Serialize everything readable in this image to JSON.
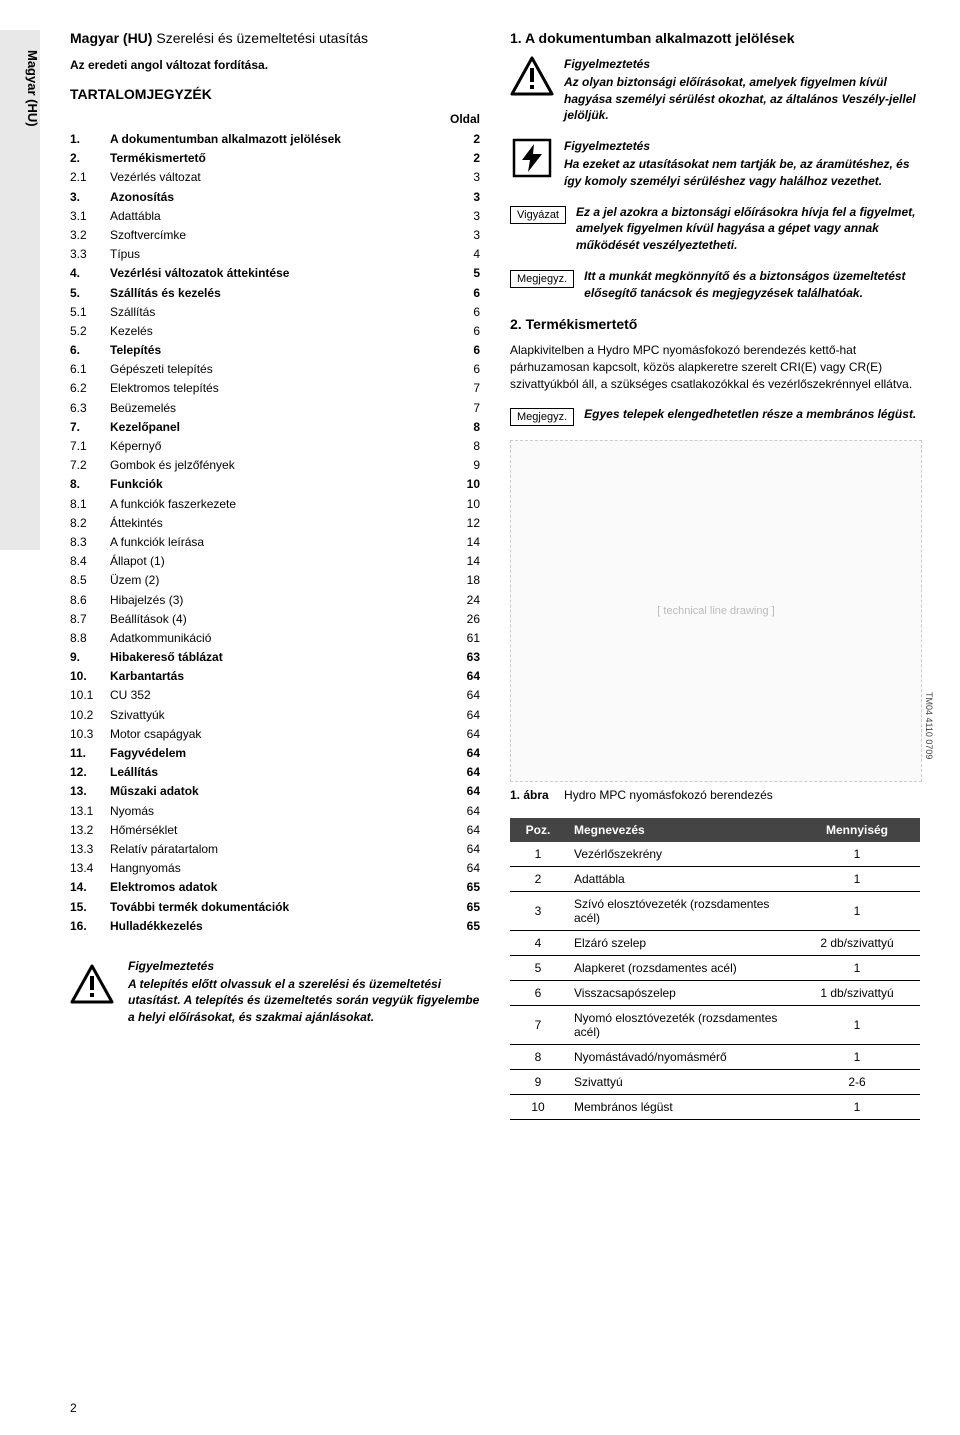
{
  "side_tab": "Magyar (HU)",
  "doc_title_lang": "Magyar (HU)",
  "doc_title_rest": "Szerelési és üzemeltetési utasítás",
  "subtitle": "Az eredeti angol változat fordítása.",
  "toc_heading": "TARTALOMJEGYZÉK",
  "toc_page_label": "Oldal",
  "toc": [
    {
      "n": "1.",
      "t": "A dokumentumban alkalmazott jelölések",
      "p": "2",
      "b": true
    },
    {
      "n": "2.",
      "t": "Termékismertető",
      "p": "2",
      "b": true
    },
    {
      "n": "2.1",
      "t": "Vezérlés változat",
      "p": "3",
      "b": false
    },
    {
      "n": "3.",
      "t": "Azonosítás",
      "p": "3",
      "b": true
    },
    {
      "n": "3.1",
      "t": "Adattábla",
      "p": "3",
      "b": false
    },
    {
      "n": "3.2",
      "t": "Szoftvercímke",
      "p": "3",
      "b": false
    },
    {
      "n": "3.3",
      "t": "Típus",
      "p": "4",
      "b": false
    },
    {
      "n": "4.",
      "t": "Vezérlési változatok áttekintése",
      "p": "5",
      "b": true
    },
    {
      "n": "5.",
      "t": "Szállítás és kezelés",
      "p": "6",
      "b": true
    },
    {
      "n": "5.1",
      "t": "Szállítás",
      "p": "6",
      "b": false
    },
    {
      "n": "5.2",
      "t": "Kezelés",
      "p": "6",
      "b": false
    },
    {
      "n": "6.",
      "t": "Telepítés",
      "p": "6",
      "b": true
    },
    {
      "n": "6.1",
      "t": "Gépészeti telepítés",
      "p": "6",
      "b": false
    },
    {
      "n": "6.2",
      "t": "Elektromos telepítés",
      "p": "7",
      "b": false
    },
    {
      "n": "6.3",
      "t": "Beüzemelés",
      "p": "7",
      "b": false
    },
    {
      "n": "7.",
      "t": "Kezelőpanel",
      "p": "8",
      "b": true
    },
    {
      "n": "7.1",
      "t": "Képernyő",
      "p": "8",
      "b": false
    },
    {
      "n": "7.2",
      "t": "Gombok és jelzőfények",
      "p": "9",
      "b": false
    },
    {
      "n": "8.",
      "t": "Funkciók",
      "p": "10",
      "b": true
    },
    {
      "n": "8.1",
      "t": "A funkciók faszerkezete",
      "p": "10",
      "b": false
    },
    {
      "n": "8.2",
      "t": "Áttekintés",
      "p": "12",
      "b": false
    },
    {
      "n": "8.3",
      "t": "A funkciók leírása",
      "p": "14",
      "b": false
    },
    {
      "n": "8.4",
      "t": "Állapot (1)",
      "p": "14",
      "b": false
    },
    {
      "n": "8.5",
      "t": "Üzem (2)",
      "p": "18",
      "b": false
    },
    {
      "n": "8.6",
      "t": "Hibajelzés (3)",
      "p": "24",
      "b": false
    },
    {
      "n": "8.7",
      "t": "Beállítások (4)",
      "p": "26",
      "b": false
    },
    {
      "n": "8.8",
      "t": "Adatkommunikáció",
      "p": "61",
      "b": false
    },
    {
      "n": "9.",
      "t": "Hibakereső táblázat",
      "p": "63",
      "b": true
    },
    {
      "n": "10.",
      "t": "Karbantartás",
      "p": "64",
      "b": true
    },
    {
      "n": "10.1",
      "t": "CU 352",
      "p": "64",
      "b": false
    },
    {
      "n": "10.2",
      "t": "Szivattyúk",
      "p": "64",
      "b": false
    },
    {
      "n": "10.3",
      "t": "Motor csapágyak",
      "p": "64",
      "b": false
    },
    {
      "n": "11.",
      "t": "Fagyvédelem",
      "p": "64",
      "b": true
    },
    {
      "n": "12.",
      "t": "Leállítás",
      "p": "64",
      "b": true
    },
    {
      "n": "13.",
      "t": "Műszaki adatok",
      "p": "64",
      "b": true
    },
    {
      "n": "13.1",
      "t": "Nyomás",
      "p": "64",
      "b": false
    },
    {
      "n": "13.2",
      "t": "Hőmérséklet",
      "p": "64",
      "b": false
    },
    {
      "n": "13.3",
      "t": "Relatív páratartalom",
      "p": "64",
      "b": false
    },
    {
      "n": "13.4",
      "t": "Hangnyomás",
      "p": "64",
      "b": false
    },
    {
      "n": "14.",
      "t": "Elektromos adatok",
      "p": "65",
      "b": true
    },
    {
      "n": "15.",
      "t": "További termék dokumentációk",
      "p": "65",
      "b": true
    },
    {
      "n": "16.",
      "t": "Hulladékkezelés",
      "p": "65",
      "b": true
    }
  ],
  "left_warning": {
    "lead": "Figyelmeztetés",
    "body": "A telepítés előtt olvassuk el a szerelési és üzemeltetési utasítást. A telepítés és üzemeltetés során vegyük figyelembe a helyi előírásokat, és szakmai ajánlásokat."
  },
  "section1_heading": "1. A dokumentumban alkalmazott jelölések",
  "notices": {
    "warn1": {
      "lead": "Figyelmeztetés",
      "body": "Az olyan biztonsági előírásokat, amelyek figyelmen kívül hagyása személyi sérülést okozhat, az általános Veszély-jellel jelöljük."
    },
    "warn2": {
      "lead": "Figyelmeztetés",
      "body": "Ha ezeket az utasításokat nem tartják be, az áramütéshez, és így komoly személyi sérüléshez vagy halálhoz vezethet."
    },
    "caution": {
      "label": "Vigyázat",
      "body": "Ez a jel azokra a biztonsági előírásokra hívja fel a figyelmet, amelyek figyelmen kívül hagyása a gépet vagy annak működését veszélyeztetheti."
    },
    "note": {
      "label": "Megjegyz.",
      "body": "Itt a munkát megkönnyítő és a biztonságos üzemeltetést elősegítő tanácsok és megjegyzések találhatóak."
    }
  },
  "section2_heading": "2. Termékismertető",
  "section2_para": "Alapkivitelben a Hydro MPC nyomásfokozó berendezés kettő-hat párhuzamosan kapcsolt, közös alapkeretre szerelt CRI(E) vagy CR(E) szivattyúkból áll, a szükséges csatlakozókkal és vezérlőszekrénnyel ellátva.",
  "section2_note": {
    "label": "Megjegyz.",
    "body": "Egyes telepek elengedhetetlen része a membrános légüst."
  },
  "figure": {
    "sidecode": "TM04 4110 0709",
    "caption_num": "1. ábra",
    "caption_text": "Hydro MPC nyomásfokozó berendezés",
    "placeholder": "[ technical line drawing ]"
  },
  "parts_table": {
    "headers": {
      "pos": "Poz.",
      "name": "Megnevezés",
      "qty": "Mennyiség"
    },
    "rows": [
      {
        "pos": "1",
        "name": "Vezérlőszekrény",
        "qty": "1"
      },
      {
        "pos": "2",
        "name": "Adattábla",
        "qty": "1"
      },
      {
        "pos": "3",
        "name": "Szívó elosztóvezeték (rozsdamentes acél)",
        "qty": "1"
      },
      {
        "pos": "4",
        "name": "Elzáró szelep",
        "qty": "2 db/szivattyú"
      },
      {
        "pos": "5",
        "name": "Alapkeret (rozsdamentes acél)",
        "qty": "1"
      },
      {
        "pos": "6",
        "name": "Visszacsapószelep",
        "qty": "1 db/szivattyú"
      },
      {
        "pos": "7",
        "name": "Nyomó elosztóvezeték (rozsdamentes acél)",
        "qty": "1"
      },
      {
        "pos": "8",
        "name": "Nyomástávadó/nyomásmérő",
        "qty": "1"
      },
      {
        "pos": "9",
        "name": "Szivattyú",
        "qty": "2-6"
      },
      {
        "pos": "10",
        "name": "Membrános légüst",
        "qty": "1"
      }
    ]
  },
  "page_number": "2"
}
